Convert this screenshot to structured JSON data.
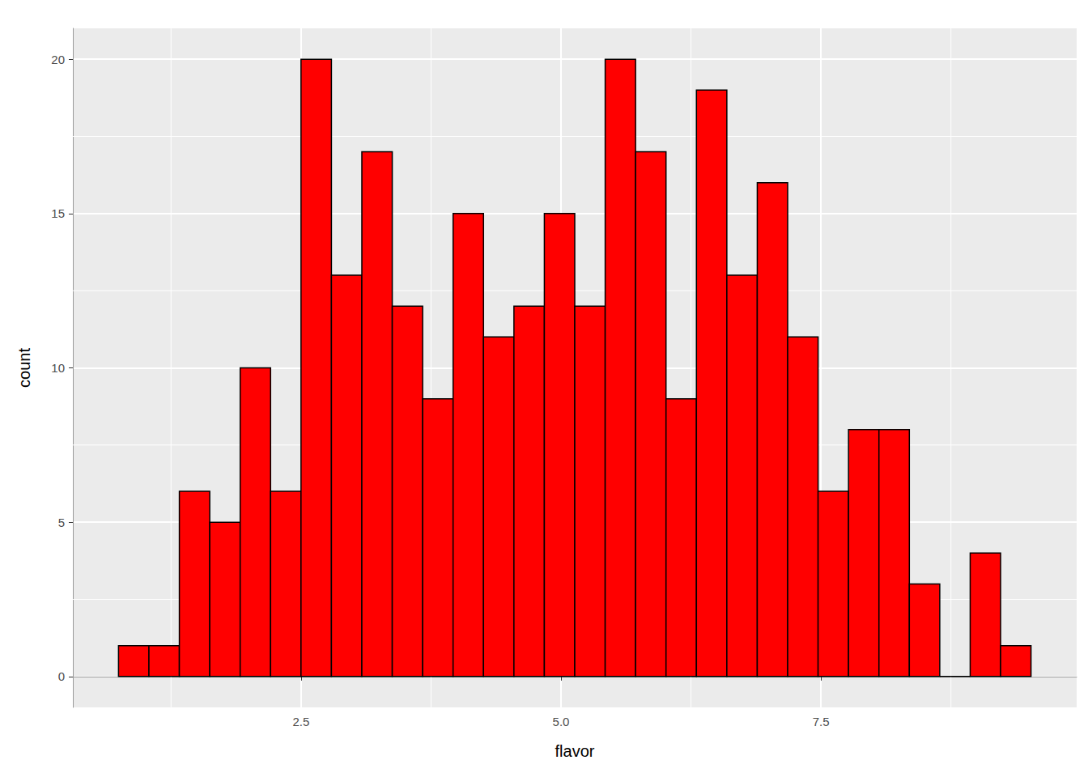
{
  "chart_data": {
    "type": "histogram",
    "x_label": "flavor",
    "y_label": "count",
    "bins": [
      0.745,
      1.0375,
      1.33,
      1.6225,
      1.915,
      2.2075,
      2.5,
      2.7925,
      3.085,
      3.3775,
      3.67,
      3.9625,
      4.255,
      4.5475,
      4.84,
      5.1325,
      5.425,
      5.7175,
      6.01,
      6.3025,
      6.595,
      6.8875,
      7.18,
      7.4725,
      7.765,
      8.0575,
      8.35,
      8.6425,
      8.935,
      9.2275,
      9.52
    ],
    "values": [
      1,
      1,
      6,
      5,
      10,
      6,
      20,
      13,
      17,
      12,
      9,
      15,
      11,
      12,
      15,
      12,
      20,
      17,
      9,
      19,
      13,
      16,
      11,
      6,
      8,
      8,
      3,
      0,
      4,
      1
    ],
    "color": "#FF0000",
    "xlim": [
      0.306,
      9.959
    ],
    "xticks": [
      2.5,
      {
        "value": 5,
        "label": "5.0"
      },
      7.5
    ],
    "ylim": [
      -1,
      21
    ],
    "yticks": [
      0,
      5,
      10,
      15,
      20
    ],
    "grid": true
  }
}
